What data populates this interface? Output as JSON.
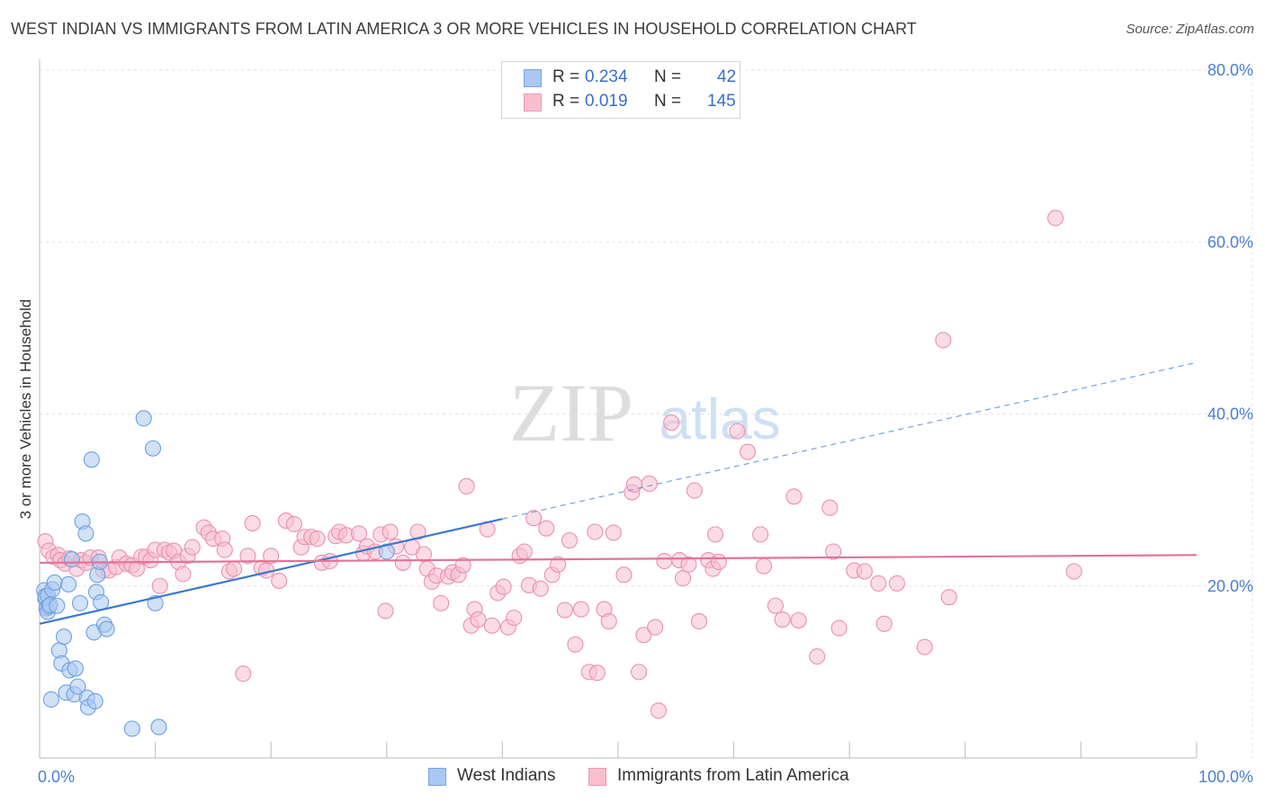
{
  "title": "WEST INDIAN VS IMMIGRANTS FROM LATIN AMERICA 3 OR MORE VEHICLES IN HOUSEHOLD CORRELATION CHART",
  "source": "Source: ZipAtlas.com",
  "watermark": {
    "zip": "ZIP",
    "atlas": "atlas"
  },
  "legend_top": {
    "rows": [
      {
        "r_label": "R =",
        "r_value": "0.234",
        "n_label": "N =",
        "n_value": "42",
        "color": "#a9c8f2",
        "border": "#7aa6e0"
      },
      {
        "r_label": "R =",
        "r_value": "0.019",
        "n_label": "N =",
        "n_value": "145",
        "color": "#f8bfd0",
        "border": "#ec97b1"
      }
    ]
  },
  "legend_bottom": {
    "items": [
      {
        "label": "West Indians",
        "color": "#a9c8f2",
        "border": "#7aa6e0"
      },
      {
        "label": "Immigrants from Latin America",
        "color": "#f8bfd0",
        "border": "#ec97b1"
      }
    ]
  },
  "chart_data": {
    "type": "scatter",
    "title": "WEST INDIAN VS IMMIGRANTS FROM LATIN AMERICA 3 OR MORE VEHICLES IN HOUSEHOLD CORRELATION CHART",
    "xlabel": "",
    "ylabel": "3 or more Vehicles in Household",
    "xlim": [
      0,
      100
    ],
    "ylim": [
      0,
      80
    ],
    "x_tick_labels": [
      "0.0%",
      "100.0%"
    ],
    "y_tick_labels": [
      "20.0%",
      "40.0%",
      "60.0%",
      "80.0%"
    ],
    "y_ticks": [
      20,
      40,
      60,
      80
    ],
    "grid": true,
    "legend_position": "top-center",
    "series": [
      {
        "name": "West Indians",
        "color": "#6f9fdf",
        "fill": "#a9c8f2",
        "trend": {
          "x": [
            0,
            40
          ],
          "y": [
            15.6,
            27.8
          ],
          "dashed_extension_to": [
            100,
            46.0
          ]
        },
        "points": [
          [
            0.4,
            19.5
          ],
          [
            0.5,
            18.5
          ],
          [
            0.5,
            18.8
          ],
          [
            0.6,
            17.4
          ],
          [
            0.7,
            18.9
          ],
          [
            0.7,
            17.0
          ],
          [
            0.8,
            17.6
          ],
          [
            0.9,
            17.8
          ],
          [
            1.0,
            6.8
          ],
          [
            1.1,
            19.6
          ],
          [
            1.3,
            20.4
          ],
          [
            1.5,
            17.7
          ],
          [
            1.7,
            12.5
          ],
          [
            1.9,
            11.0
          ],
          [
            2.1,
            14.1
          ],
          [
            2.3,
            7.6
          ],
          [
            2.5,
            20.2
          ],
          [
            2.6,
            10.2
          ],
          [
            2.8,
            23.1
          ],
          [
            3.0,
            7.4
          ],
          [
            3.1,
            10.4
          ],
          [
            3.3,
            8.3
          ],
          [
            3.5,
            18.0
          ],
          [
            3.7,
            27.5
          ],
          [
            4.0,
            26.1
          ],
          [
            4.1,
            7.0
          ],
          [
            4.2,
            5.9
          ],
          [
            4.5,
            34.7
          ],
          [
            4.7,
            14.6
          ],
          [
            4.8,
            6.6
          ],
          [
            4.9,
            19.3
          ],
          [
            5.0,
            21.3
          ],
          [
            5.2,
            22.8
          ],
          [
            5.3,
            18.1
          ],
          [
            5.6,
            15.5
          ],
          [
            5.8,
            15.0
          ],
          [
            8.0,
            3.4
          ],
          [
            9.0,
            39.5
          ],
          [
            9.8,
            36.0
          ],
          [
            10.0,
            18.0
          ],
          [
            10.3,
            3.6
          ],
          [
            30.0,
            24.0
          ]
        ]
      },
      {
        "name": "Immigrants from Latin America",
        "color": "#ec8fae",
        "fill": "#f8bfd0",
        "trend": {
          "x": [
            0,
            100
          ],
          "y": [
            22.7,
            23.6
          ]
        },
        "points": [
          [
            0.5,
            25.2
          ],
          [
            0.8,
            24.1
          ],
          [
            1.2,
            23.4
          ],
          [
            1.6,
            23.6
          ],
          [
            1.8,
            23.0
          ],
          [
            2.2,
            22.6
          ],
          [
            2.6,
            23.2
          ],
          [
            3.2,
            22.0
          ],
          [
            3.6,
            23.0
          ],
          [
            4.0,
            22.7
          ],
          [
            4.4,
            23.3
          ],
          [
            5.1,
            23.3
          ],
          [
            5.5,
            21.8
          ],
          [
            6.0,
            21.8
          ],
          [
            6.6,
            22.2
          ],
          [
            6.9,
            23.3
          ],
          [
            7.5,
            22.6
          ],
          [
            8.0,
            22.4
          ],
          [
            8.4,
            22.0
          ],
          [
            8.8,
            23.4
          ],
          [
            9.2,
            23.4
          ],
          [
            9.6,
            23.0
          ],
          [
            10.0,
            24.2
          ],
          [
            10.4,
            20.0
          ],
          [
            10.8,
            24.2
          ],
          [
            11.2,
            23.9
          ],
          [
            11.6,
            24.1
          ],
          [
            12.0,
            22.8
          ],
          [
            12.4,
            21.4
          ],
          [
            12.8,
            23.5
          ],
          [
            13.2,
            24.5
          ],
          [
            14.2,
            26.8
          ],
          [
            14.6,
            26.2
          ],
          [
            15.0,
            25.5
          ],
          [
            15.8,
            25.5
          ],
          [
            16.0,
            24.2
          ],
          [
            16.4,
            21.7
          ],
          [
            16.8,
            22.0
          ],
          [
            17.6,
            9.8
          ],
          [
            18.0,
            23.5
          ],
          [
            18.4,
            27.3
          ],
          [
            19.2,
            22.1
          ],
          [
            19.6,
            21.8
          ],
          [
            20.0,
            23.5
          ],
          [
            20.7,
            20.6
          ],
          [
            21.3,
            27.6
          ],
          [
            22.0,
            27.2
          ],
          [
            22.6,
            24.5
          ],
          [
            22.9,
            25.7
          ],
          [
            23.5,
            25.7
          ],
          [
            24.0,
            25.5
          ],
          [
            24.4,
            22.7
          ],
          [
            25.1,
            22.9
          ],
          [
            25.6,
            25.8
          ],
          [
            25.9,
            26.3
          ],
          [
            26.5,
            25.9
          ],
          [
            27.6,
            26.1
          ],
          [
            28.0,
            23.8
          ],
          [
            28.3,
            24.6
          ],
          [
            29.0,
            24.0
          ],
          [
            29.5,
            26.0
          ],
          [
            29.9,
            17.1
          ],
          [
            30.3,
            26.3
          ],
          [
            30.8,
            24.6
          ],
          [
            31.4,
            22.7
          ],
          [
            32.2,
            24.5
          ],
          [
            32.7,
            26.3
          ],
          [
            33.2,
            23.7
          ],
          [
            33.5,
            22.0
          ],
          [
            33.9,
            20.5
          ],
          [
            34.3,
            21.2
          ],
          [
            34.7,
            18.0
          ],
          [
            35.3,
            21.1
          ],
          [
            35.7,
            21.6
          ],
          [
            36.2,
            21.3
          ],
          [
            36.6,
            22.4
          ],
          [
            36.9,
            31.6
          ],
          [
            37.3,
            15.4
          ],
          [
            37.6,
            17.3
          ],
          [
            37.9,
            16.1
          ],
          [
            38.7,
            26.6
          ],
          [
            39.1,
            15.4
          ],
          [
            39.6,
            19.2
          ],
          [
            40.1,
            19.9
          ],
          [
            40.5,
            15.2
          ],
          [
            41.0,
            16.3
          ],
          [
            41.5,
            23.5
          ],
          [
            41.9,
            24.0
          ],
          [
            42.3,
            20.1
          ],
          [
            42.7,
            27.9
          ],
          [
            43.3,
            19.7
          ],
          [
            43.8,
            26.7
          ],
          [
            44.3,
            21.3
          ],
          [
            44.8,
            22.5
          ],
          [
            45.4,
            17.2
          ],
          [
            45.8,
            25.3
          ],
          [
            46.3,
            13.2
          ],
          [
            46.8,
            17.3
          ],
          [
            47.5,
            10.0
          ],
          [
            48.0,
            26.3
          ],
          [
            48.2,
            9.9
          ],
          [
            48.8,
            17.3
          ],
          [
            49.2,
            15.9
          ],
          [
            49.6,
            26.2
          ],
          [
            50.5,
            21.3
          ],
          [
            51.2,
            30.9
          ],
          [
            51.4,
            31.8
          ],
          [
            51.8,
            10.0
          ],
          [
            52.2,
            14.3
          ],
          [
            52.7,
            31.9
          ],
          [
            53.2,
            15.2
          ],
          [
            53.5,
            5.5
          ],
          [
            54.0,
            22.9
          ],
          [
            54.6,
            39.0
          ],
          [
            55.3,
            23.0
          ],
          [
            55.6,
            20.9
          ],
          [
            56.1,
            22.5
          ],
          [
            56.6,
            31.1
          ],
          [
            57.0,
            15.9
          ],
          [
            57.8,
            23.0
          ],
          [
            58.2,
            22.0
          ],
          [
            58.4,
            26.0
          ],
          [
            58.7,
            22.8
          ],
          [
            60.3,
            38.0
          ],
          [
            61.2,
            35.6
          ],
          [
            62.3,
            26.0
          ],
          [
            62.6,
            22.3
          ],
          [
            63.6,
            17.7
          ],
          [
            64.2,
            16.1
          ],
          [
            65.2,
            30.4
          ],
          [
            65.6,
            16.0
          ],
          [
            67.2,
            11.8
          ],
          [
            68.3,
            29.1
          ],
          [
            68.6,
            24.0
          ],
          [
            69.1,
            15.1
          ],
          [
            70.4,
            21.8
          ],
          [
            71.3,
            21.7
          ],
          [
            72.5,
            20.3
          ],
          [
            73.0,
            15.6
          ],
          [
            74.1,
            20.3
          ],
          [
            76.5,
            12.9
          ],
          [
            78.1,
            48.6
          ],
          [
            78.6,
            18.7
          ],
          [
            87.8,
            62.8
          ],
          [
            89.4,
            21.7
          ]
        ]
      }
    ]
  }
}
